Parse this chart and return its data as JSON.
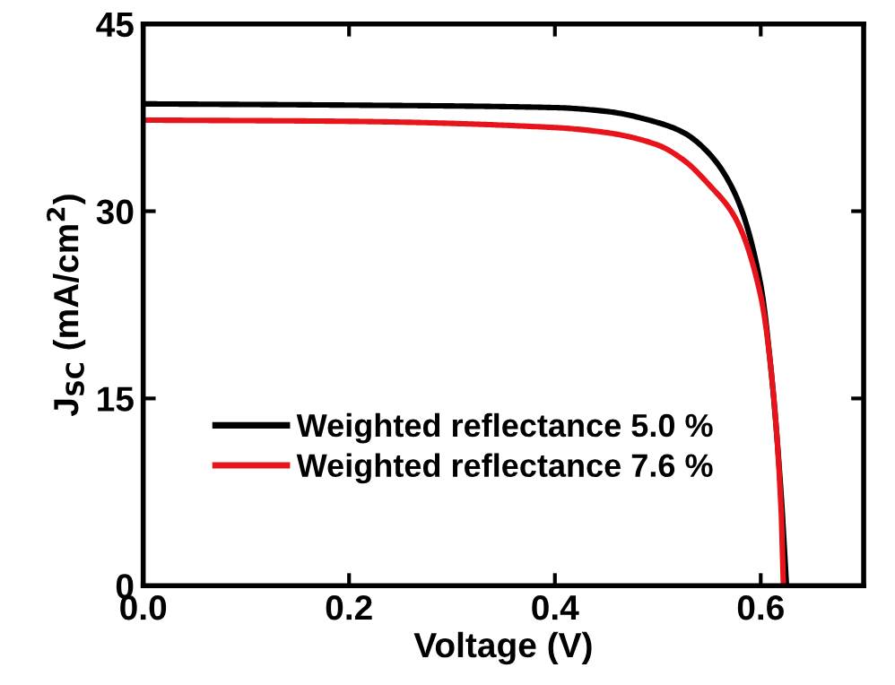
{
  "chart_data": {
    "type": "line",
    "xlabel": "Voltage (V)",
    "ylabel": "J$_{SC}$ (mA/cm$^{2}$)",
    "xlim": [
      0,
      0.7
    ],
    "xticks": [
      {
        "value": 0,
        "label": "0.0"
      },
      0.2,
      0.4,
      0.6
    ],
    "ylim": [
      0,
      45
    ],
    "yticks": [
      0,
      15,
      30,
      45
    ],
    "grid": false,
    "legend": "bottom left",
    "line_style": "solid",
    "series": [
      {
        "name": "Weighted reflectance 5.0 %",
        "color": "#000000",
        "x": [
          0,
          0.2,
          0.4,
          0.45,
          0.5,
          0.525,
          0.55,
          0.575,
          0.6,
          0.61,
          0.62,
          0.625
        ],
        "values": [
          38.6,
          38.5,
          38.3,
          38.0,
          37.1,
          36.3,
          34.6,
          31.4,
          24.1,
          17.3,
          7.1,
          0
        ]
      },
      {
        "name": "Weighted reflectance 7.6 %",
        "color": "#e8141c",
        "x": [
          0,
          0.2,
          0.4,
          0.45,
          0.5,
          0.525,
          0.55,
          0.575,
          0.6,
          0.61,
          0.62,
          0.622
        ],
        "values": [
          37.3,
          37.2,
          36.7,
          36.3,
          35.3,
          34.1,
          32.1,
          29.5,
          23.2,
          17.3,
          5.7,
          0
        ]
      }
    ]
  }
}
